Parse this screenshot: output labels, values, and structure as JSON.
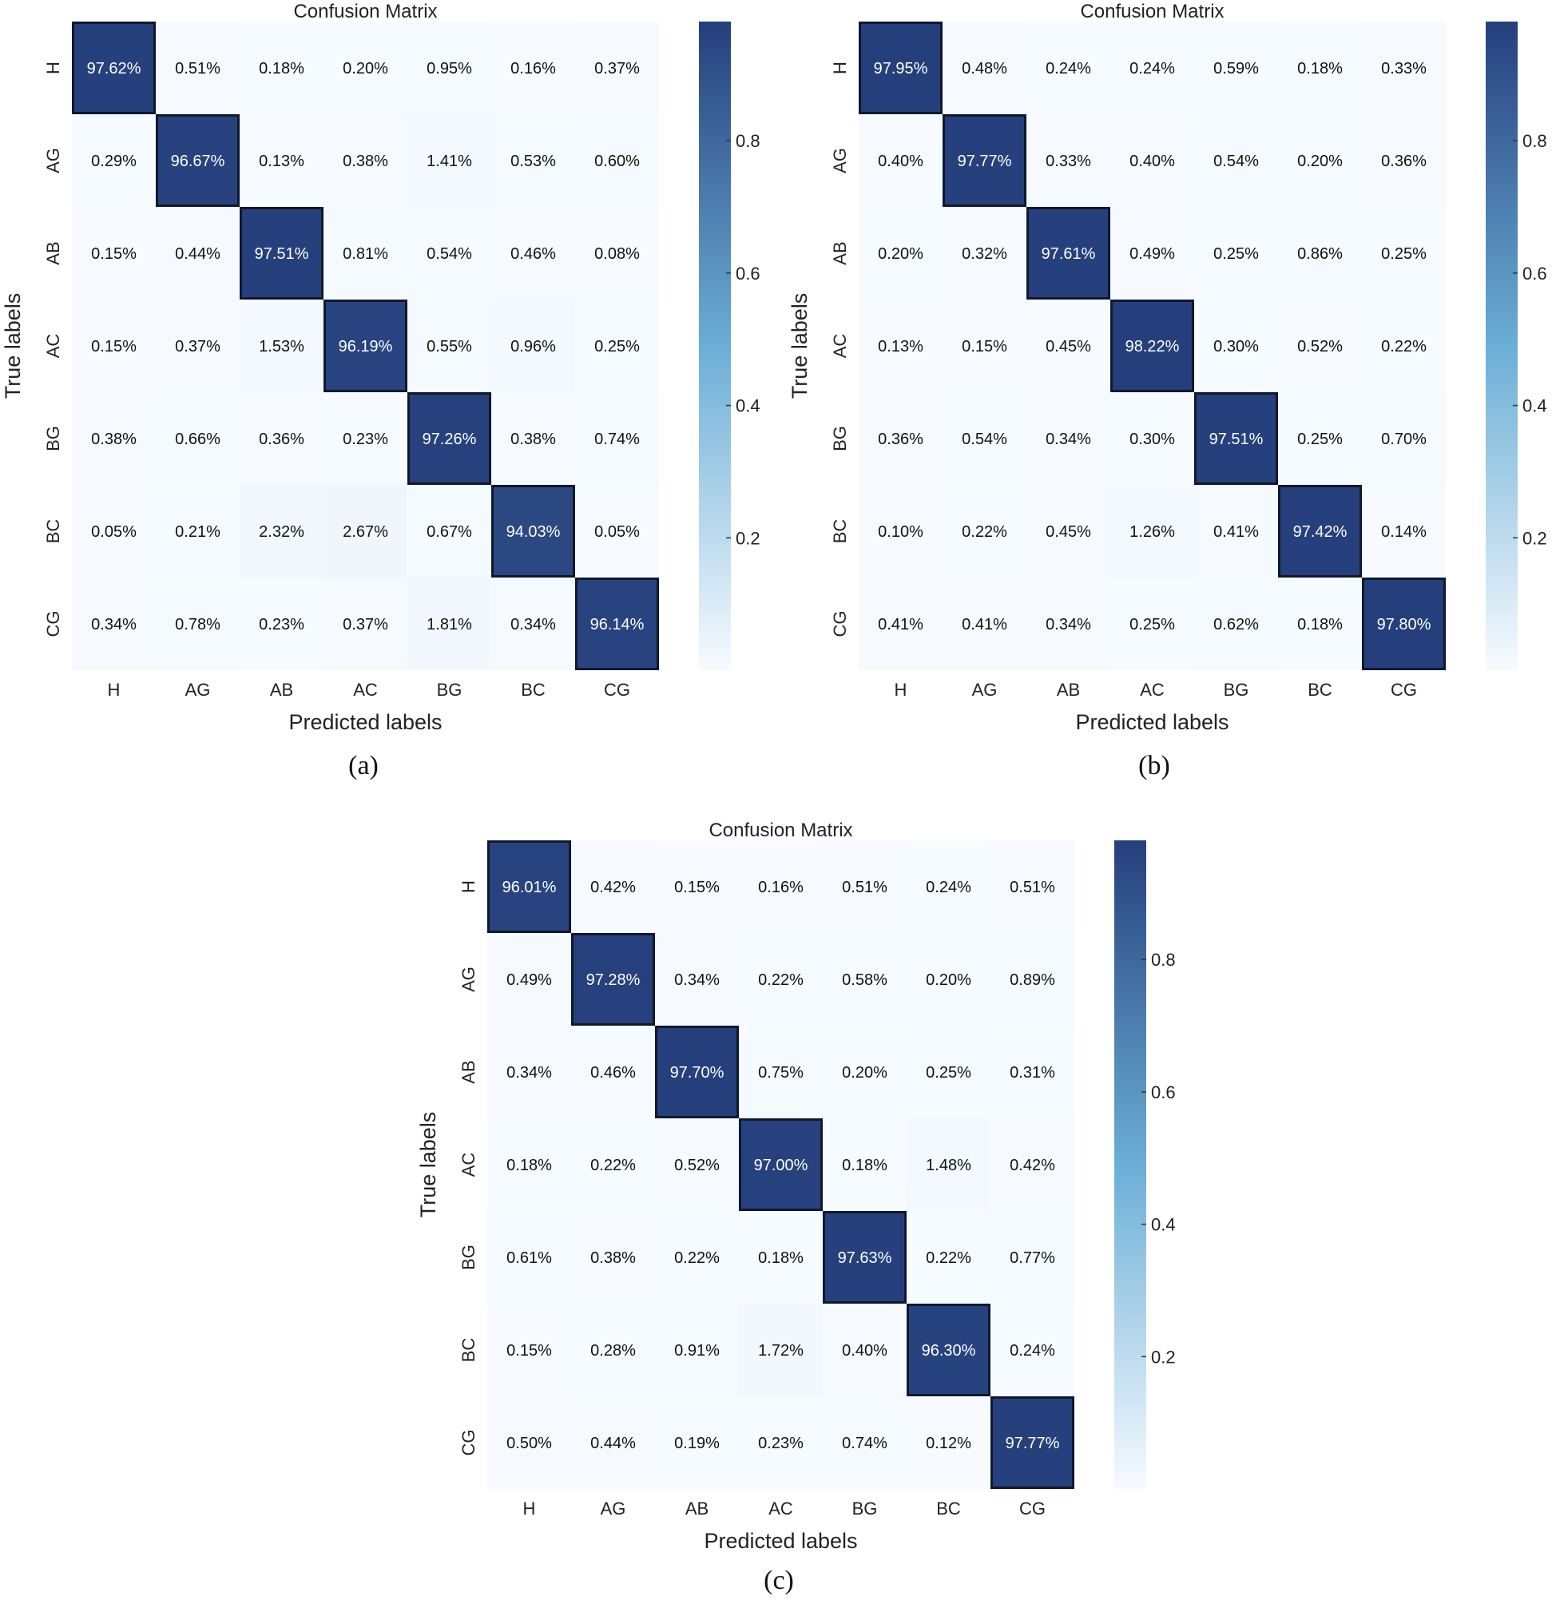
{
  "colors": {
    "low": "#f7fbff",
    "mid": "#6baed6",
    "high": "#253f7c"
  },
  "panels": [
    {
      "caption": "(a)"
    },
    {
      "caption": "(b)"
    },
    {
      "caption": "(c)"
    }
  ],
  "chart_data": [
    {
      "type": "heatmap",
      "title": "Confusion Matrix",
      "xlabel": "Predicted labels",
      "ylabel": "True labels",
      "x_categories": [
        "H",
        "AG",
        "AB",
        "AC",
        "BG",
        "BC",
        "CG"
      ],
      "y_categories": [
        "H",
        "AG",
        "AB",
        "AC",
        "BG",
        "BC",
        "CG"
      ],
      "colorbar": {
        "ticks": [
          0.2,
          0.4,
          0.6,
          0.8
        ],
        "range": [
          0,
          0.98
        ]
      },
      "values": [
        [
          97.62,
          0.51,
          0.18,
          0.2,
          0.95,
          0.16,
          0.37
        ],
        [
          0.29,
          96.67,
          0.13,
          0.38,
          1.41,
          0.53,
          0.6
        ],
        [
          0.15,
          0.44,
          97.51,
          0.81,
          0.54,
          0.46,
          0.08
        ],
        [
          0.15,
          0.37,
          1.53,
          96.19,
          0.55,
          0.96,
          0.25
        ],
        [
          0.38,
          0.66,
          0.36,
          0.23,
          97.26,
          0.38,
          0.74
        ],
        [
          0.05,
          0.21,
          2.32,
          2.67,
          0.67,
          94.03,
          0.05
        ],
        [
          0.34,
          0.78,
          0.23,
          0.37,
          1.81,
          0.34,
          96.14
        ]
      ]
    },
    {
      "type": "heatmap",
      "title": "Confusion Matrix",
      "xlabel": "Predicted labels",
      "ylabel": "True labels",
      "x_categories": [
        "H",
        "AG",
        "AB",
        "AC",
        "BG",
        "BC",
        "CG"
      ],
      "y_categories": [
        "H",
        "AG",
        "AB",
        "AC",
        "BG",
        "BC",
        "CG"
      ],
      "colorbar": {
        "ticks": [
          0.2,
          0.4,
          0.6,
          0.8
        ],
        "range": [
          0,
          0.98
        ]
      },
      "values": [
        [
          97.95,
          0.48,
          0.24,
          0.24,
          0.59,
          0.18,
          0.33
        ],
        [
          0.4,
          97.77,
          0.33,
          0.4,
          0.54,
          0.2,
          0.36
        ],
        [
          0.2,
          0.32,
          97.61,
          0.49,
          0.25,
          0.86,
          0.25
        ],
        [
          0.13,
          0.15,
          0.45,
          98.22,
          0.3,
          0.52,
          0.22
        ],
        [
          0.36,
          0.54,
          0.34,
          0.3,
          97.51,
          0.25,
          0.7
        ],
        [
          0.1,
          0.22,
          0.45,
          1.26,
          0.41,
          97.42,
          0.14
        ],
        [
          0.41,
          0.41,
          0.34,
          0.25,
          0.62,
          0.18,
          97.8
        ]
      ]
    },
    {
      "type": "heatmap",
      "title": "Confusion Matrix",
      "xlabel": "Predicted labels",
      "ylabel": "True labels",
      "x_categories": [
        "H",
        "AG",
        "AB",
        "AC",
        "BG",
        "BC",
        "CG"
      ],
      "y_categories": [
        "H",
        "AG",
        "AB",
        "AC",
        "BG",
        "BC",
        "CG"
      ],
      "colorbar": {
        "ticks": [
          0.2,
          0.4,
          0.6,
          0.8
        ],
        "range": [
          0,
          0.98
        ]
      },
      "values": [
        [
          96.01,
          0.42,
          0.15,
          0.16,
          0.51,
          0.24,
          0.51
        ],
        [
          0.49,
          97.28,
          0.34,
          0.22,
          0.58,
          0.2,
          0.89
        ],
        [
          0.34,
          0.46,
          97.7,
          0.75,
          0.2,
          0.25,
          0.31
        ],
        [
          0.18,
          0.22,
          0.52,
          97.0,
          0.18,
          1.48,
          0.42
        ],
        [
          0.61,
          0.38,
          0.22,
          0.18,
          97.63,
          0.22,
          0.77
        ],
        [
          0.15,
          0.28,
          0.91,
          1.72,
          0.4,
          96.3,
          0.24
        ],
        [
          0.5,
          0.44,
          0.19,
          0.23,
          0.74,
          0.12,
          97.77
        ]
      ]
    }
  ]
}
